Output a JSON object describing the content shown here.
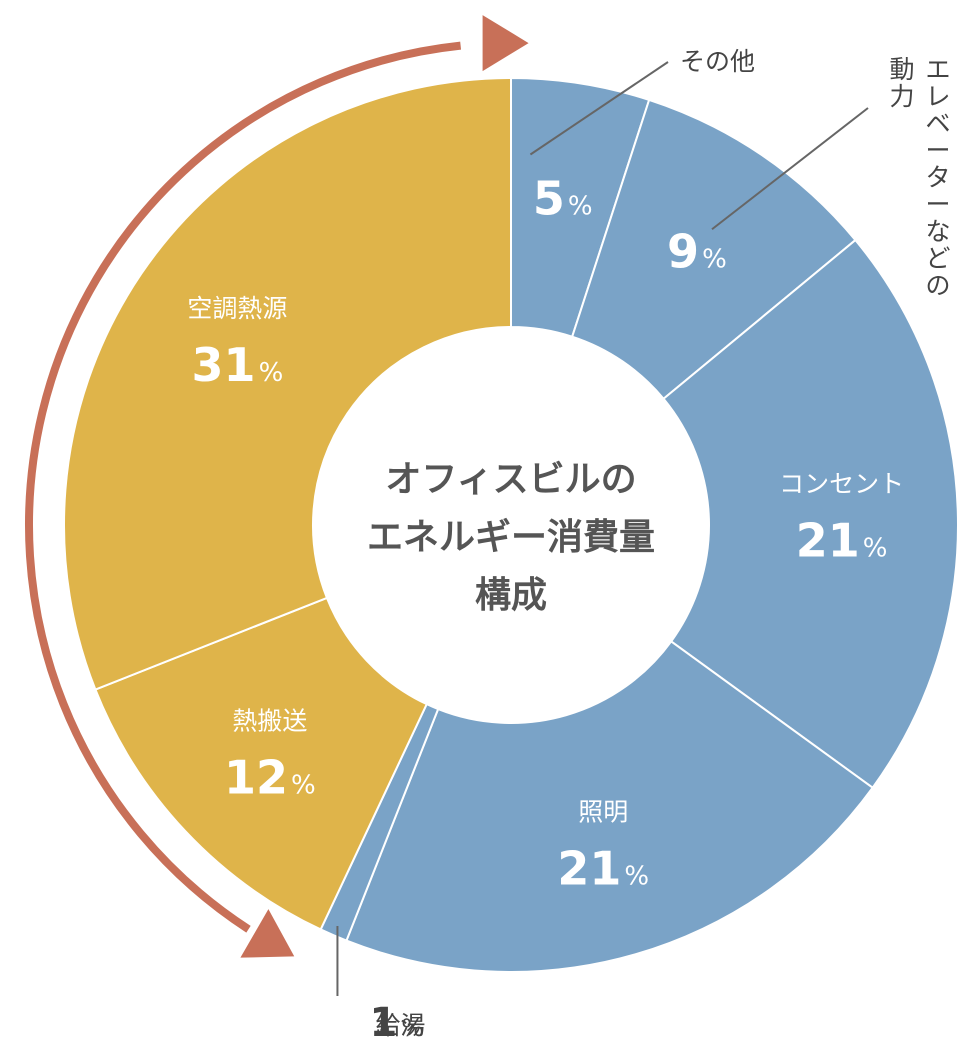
{
  "chart_data": {
    "type": "pie",
    "title": [
      "オフィスビルの",
      "エネルギー消費量",
      "構成"
    ],
    "unit": "%",
    "slices": [
      {
        "label": "その他",
        "value": 5,
        "color": "#7aa3c7"
      },
      {
        "label": "エレベーターなどの動力",
        "label_lines": [
          "エレベーターなどの",
          "動力"
        ],
        "value": 9,
        "color": "#7aa3c7"
      },
      {
        "label": "コンセント",
        "value": 21,
        "color": "#7aa3c7"
      },
      {
        "label": "照明",
        "value": 21,
        "color": "#7aa3c7"
      },
      {
        "label": "給湯",
        "value": 1,
        "color": "#7aa3c7"
      },
      {
        "label": "熱搬送",
        "value": 12,
        "color": "#dfb44a"
      },
      {
        "label": "空調熱源",
        "value": 31,
        "color": "#dfb44a"
      }
    ],
    "arrow_color": "#c87058"
  }
}
